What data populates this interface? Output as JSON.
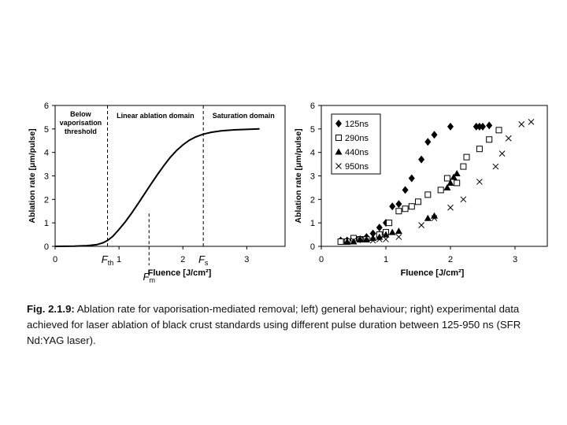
{
  "caption": {
    "label": "Fig. 2.1.9:",
    "text": " Ablation rate for vaporisation-mediated removal; left) general behaviour; right) experimental data achieved for laser ablation of black crust standards using different pulse duration between 125-950 ns (SFR Nd:YAG laser)."
  },
  "chart_data": [
    {
      "type": "line",
      "ylabel": "Ablation rate [μm/pulse]",
      "xlabel": "Fluence [J/cm²]",
      "xlim": [
        0,
        3.6
      ],
      "ylim": [
        0,
        6
      ],
      "xticks": [
        "0",
        "1",
        "2",
        "3"
      ],
      "yticks": [
        "0",
        "1",
        "2",
        "3",
        "4",
        "5",
        "6"
      ],
      "grid": false,
      "regions": [
        {
          "label": "Below\nvaporisation\nthreshold",
          "x_from": 0,
          "x_to": 0.82
        },
        {
          "label": "Linear ablation domain",
          "x_from": 0.82,
          "x_to": 2.32
        },
        {
          "label": "Saturation domain",
          "x_from": 2.32,
          "x_to": 3.6
        }
      ],
      "markers": [
        {
          "label": "F",
          "sub": "th",
          "x": 0.82
        },
        {
          "label": "F",
          "sub": "m",
          "x": 1.47
        },
        {
          "label": "F",
          "sub": "s",
          "x": 2.32
        }
      ],
      "curve": {
        "x": [
          0,
          0.3,
          0.5,
          0.65,
          0.75,
          0.82,
          0.9,
          1.0,
          1.1,
          1.2,
          1.3,
          1.4,
          1.5,
          1.6,
          1.7,
          1.8,
          1.9,
          2.0,
          2.1,
          2.2,
          2.32,
          2.45,
          2.6,
          2.8,
          3.0,
          3.2
        ],
        "y": [
          0,
          0.01,
          0.03,
          0.07,
          0.15,
          0.25,
          0.42,
          0.72,
          1.05,
          1.42,
          1.82,
          2.24,
          2.65,
          3.05,
          3.43,
          3.78,
          4.08,
          4.32,
          4.52,
          4.66,
          4.78,
          4.86,
          4.92,
          4.96,
          4.98,
          5.0
        ]
      }
    },
    {
      "type": "scatter",
      "ylabel": "Ablation rate [μm/pulse]",
      "xlabel": "Fluence [J/cm²]",
      "xlim": [
        0,
        3.5
      ],
      "ylim": [
        0,
        6
      ],
      "xticks": [
        "0",
        "1",
        "2",
        "3"
      ],
      "yticks": [
        "0",
        "1",
        "2",
        "3",
        "4",
        "5",
        "6"
      ],
      "grid": false,
      "legend_position": "top-left",
      "series": [
        {
          "name": "125ns",
          "marker": "diamond",
          "x": [
            0.3,
            0.4,
            0.5,
            0.6,
            0.7,
            0.8,
            0.9,
            1.0,
            1.1,
            1.2,
            1.3,
            1.4,
            1.55,
            1.65,
            1.75,
            2.0,
            2.4,
            2.45,
            2.5,
            2.6
          ],
          "y": [
            0.25,
            0.25,
            0.3,
            0.3,
            0.4,
            0.55,
            0.8,
            1.0,
            1.7,
            1.8,
            2.4,
            2.9,
            3.7,
            4.45,
            4.75,
            5.1,
            5.1,
            5.1,
            5.1,
            5.15
          ]
        },
        {
          "name": "290ns",
          "marker": "square",
          "x": [
            0.3,
            0.4,
            0.5,
            0.6,
            0.7,
            0.9,
            1.0,
            1.05,
            1.2,
            1.3,
            1.4,
            1.5,
            1.65,
            1.85,
            1.95,
            2.1,
            2.2,
            2.25,
            2.45,
            2.6,
            2.75
          ],
          "y": [
            0.2,
            0.2,
            0.35,
            0.3,
            0.3,
            0.5,
            0.6,
            1.0,
            1.5,
            1.6,
            1.7,
            1.9,
            2.2,
            2.4,
            2.9,
            2.7,
            3.4,
            3.8,
            4.15,
            4.55,
            4.95
          ]
        },
        {
          "name": "440ns",
          "marker": "triangle",
          "x": [
            0.4,
            0.5,
            0.6,
            0.7,
            0.8,
            0.9,
            1.0,
            1.1,
            1.2,
            1.65,
            1.75,
            1.95,
            2.0,
            2.05,
            2.1
          ],
          "y": [
            0.2,
            0.2,
            0.3,
            0.3,
            0.35,
            0.4,
            0.5,
            0.6,
            0.65,
            1.2,
            1.3,
            2.5,
            2.7,
            2.95,
            3.1
          ]
        },
        {
          "name": "950ns",
          "marker": "cross",
          "x": [
            0.5,
            0.6,
            0.8,
            0.9,
            1.0,
            1.2,
            1.55,
            1.75,
            2.0,
            2.2,
            2.45,
            2.7,
            2.8,
            2.9,
            3.1,
            3.25
          ],
          "y": [
            0.25,
            0.3,
            0.25,
            0.3,
            0.3,
            0.4,
            0.9,
            1.2,
            1.65,
            2.0,
            2.75,
            3.4,
            3.95,
            4.6,
            5.2,
            5.3
          ]
        }
      ]
    }
  ]
}
